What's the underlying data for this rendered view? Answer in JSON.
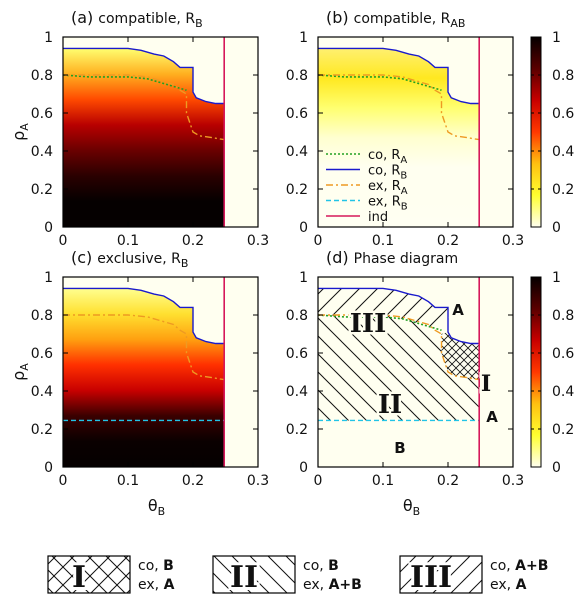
{
  "figure": {
    "panels": [
      {
        "id": "a",
        "title_prefix": "(a)",
        "title_text": "compatible, R",
        "title_sub": "B"
      },
      {
        "id": "b",
        "title_prefix": "(b)",
        "title_text": "compatible, R",
        "title_sub": "AB"
      },
      {
        "id": "c",
        "title_prefix": "(c)",
        "title_text": "exclusive, R",
        "title_sub": "B"
      },
      {
        "id": "d",
        "title_prefix": "(d)",
        "title_text": "Phase diagram",
        "title_sub": ""
      }
    ],
    "axes": {
      "xlabel_main": "θ",
      "xlabel_sub": "B",
      "ylabel_main": "ρ",
      "ylabel_sub": "A",
      "xlim": [
        0,
        0.3
      ],
      "ylim": [
        0,
        1
      ],
      "xticks": [
        "0",
        "0.1",
        "0.2",
        "0.3"
      ],
      "yticks": [
        "0",
        "0.2",
        "0.4",
        "0.6",
        "0.8",
        "1"
      ]
    },
    "colorbar": {
      "range": [
        0,
        1
      ],
      "ticks": [
        "0",
        "0.2",
        "0.4",
        "0.6",
        "0.8",
        "1"
      ],
      "colors": [
        "#fffff0",
        "#ffff30",
        "#ffc010",
        "#ff3800",
        "#c80000",
        "#5a0000",
        "#050000"
      ]
    },
    "legend": [
      {
        "main": "co, R",
        "sub": "A",
        "color": "#22a022",
        "style": "dotted"
      },
      {
        "main": "co, R",
        "sub": "B",
        "color": "#1a1acc",
        "style": "solid"
      },
      {
        "main": "ex, R",
        "sub": "A",
        "color": "#ee9a22",
        "style": "dashdot"
      },
      {
        "main": "ex, R",
        "sub": "B",
        "color": "#22c4e6",
        "style": "dashed"
      },
      {
        "main": "ind",
        "sub": "",
        "color": "#d6185a",
        "style": "solid"
      }
    ],
    "phase_labels": {
      "I": "I",
      "II": "II",
      "III": "III",
      "A_top": "A",
      "A_right": "A",
      "B_bottom": "B"
    },
    "phase_legend": [
      {
        "roman": "I",
        "co_main": "co, ",
        "co_bold": "B",
        "ex_main": "ex, ",
        "ex_bold": "A",
        "hatch": "cross"
      },
      {
        "roman": "II",
        "co_main": "co, ",
        "co_bold": "B",
        "ex_main": "ex, ",
        "ex_bold": "A+B",
        "hatch": "back"
      },
      {
        "roman": "III",
        "co_main": "co, ",
        "co_bold": "A+B",
        "ex_main": "ex, ",
        "ex_bold": "A",
        "hatch": "fwd"
      }
    ]
  },
  "chart_data": {
    "type": "heatmap",
    "x_quantity": "θ_B",
    "y_quantity": "ρ_A",
    "xlim": [
      0,
      0.3
    ],
    "ylim": [
      0,
      1
    ],
    "colorbar_range": [
      0,
      1
    ],
    "boundaries": {
      "co_RB": [
        [
          0,
          0.94
        ],
        [
          0.1,
          0.94
        ],
        [
          0.12,
          0.93
        ],
        [
          0.14,
          0.91
        ],
        [
          0.155,
          0.9
        ],
        [
          0.17,
          0.87
        ],
        [
          0.18,
          0.84
        ],
        [
          0.2,
          0.84
        ],
        [
          0.2,
          0.71
        ],
        [
          0.205,
          0.68
        ],
        [
          0.22,
          0.66
        ],
        [
          0.235,
          0.65
        ],
        [
          0.248,
          0.65
        ]
      ],
      "co_RA": [
        [
          0,
          0.8
        ],
        [
          0.04,
          0.79
        ],
        [
          0.1,
          0.79
        ],
        [
          0.13,
          0.78
        ],
        [
          0.16,
          0.75
        ],
        [
          0.19,
          0.72
        ]
      ],
      "ex_RA": [
        [
          0,
          0.8
        ],
        [
          0.1,
          0.8
        ],
        [
          0.13,
          0.79
        ],
        [
          0.15,
          0.77
        ],
        [
          0.17,
          0.75
        ],
        [
          0.18,
          0.72
        ],
        [
          0.19,
          0.7
        ],
        [
          0.19,
          0.6
        ],
        [
          0.2,
          0.5
        ],
        [
          0.21,
          0.48
        ],
        [
          0.23,
          0.47
        ],
        [
          0.248,
          0.46
        ]
      ],
      "ex_RB": [
        [
          0,
          0.245
        ],
        [
          0.248,
          0.245
        ]
      ],
      "ind_theta_B": 0.248
    },
    "phase_regions": [
      {
        "label": "I",
        "co": "B",
        "ex": "A"
      },
      {
        "label": "II",
        "co": "B",
        "ex": "A+B"
      },
      {
        "label": "III",
        "co": "A+B",
        "ex": "A"
      }
    ]
  }
}
